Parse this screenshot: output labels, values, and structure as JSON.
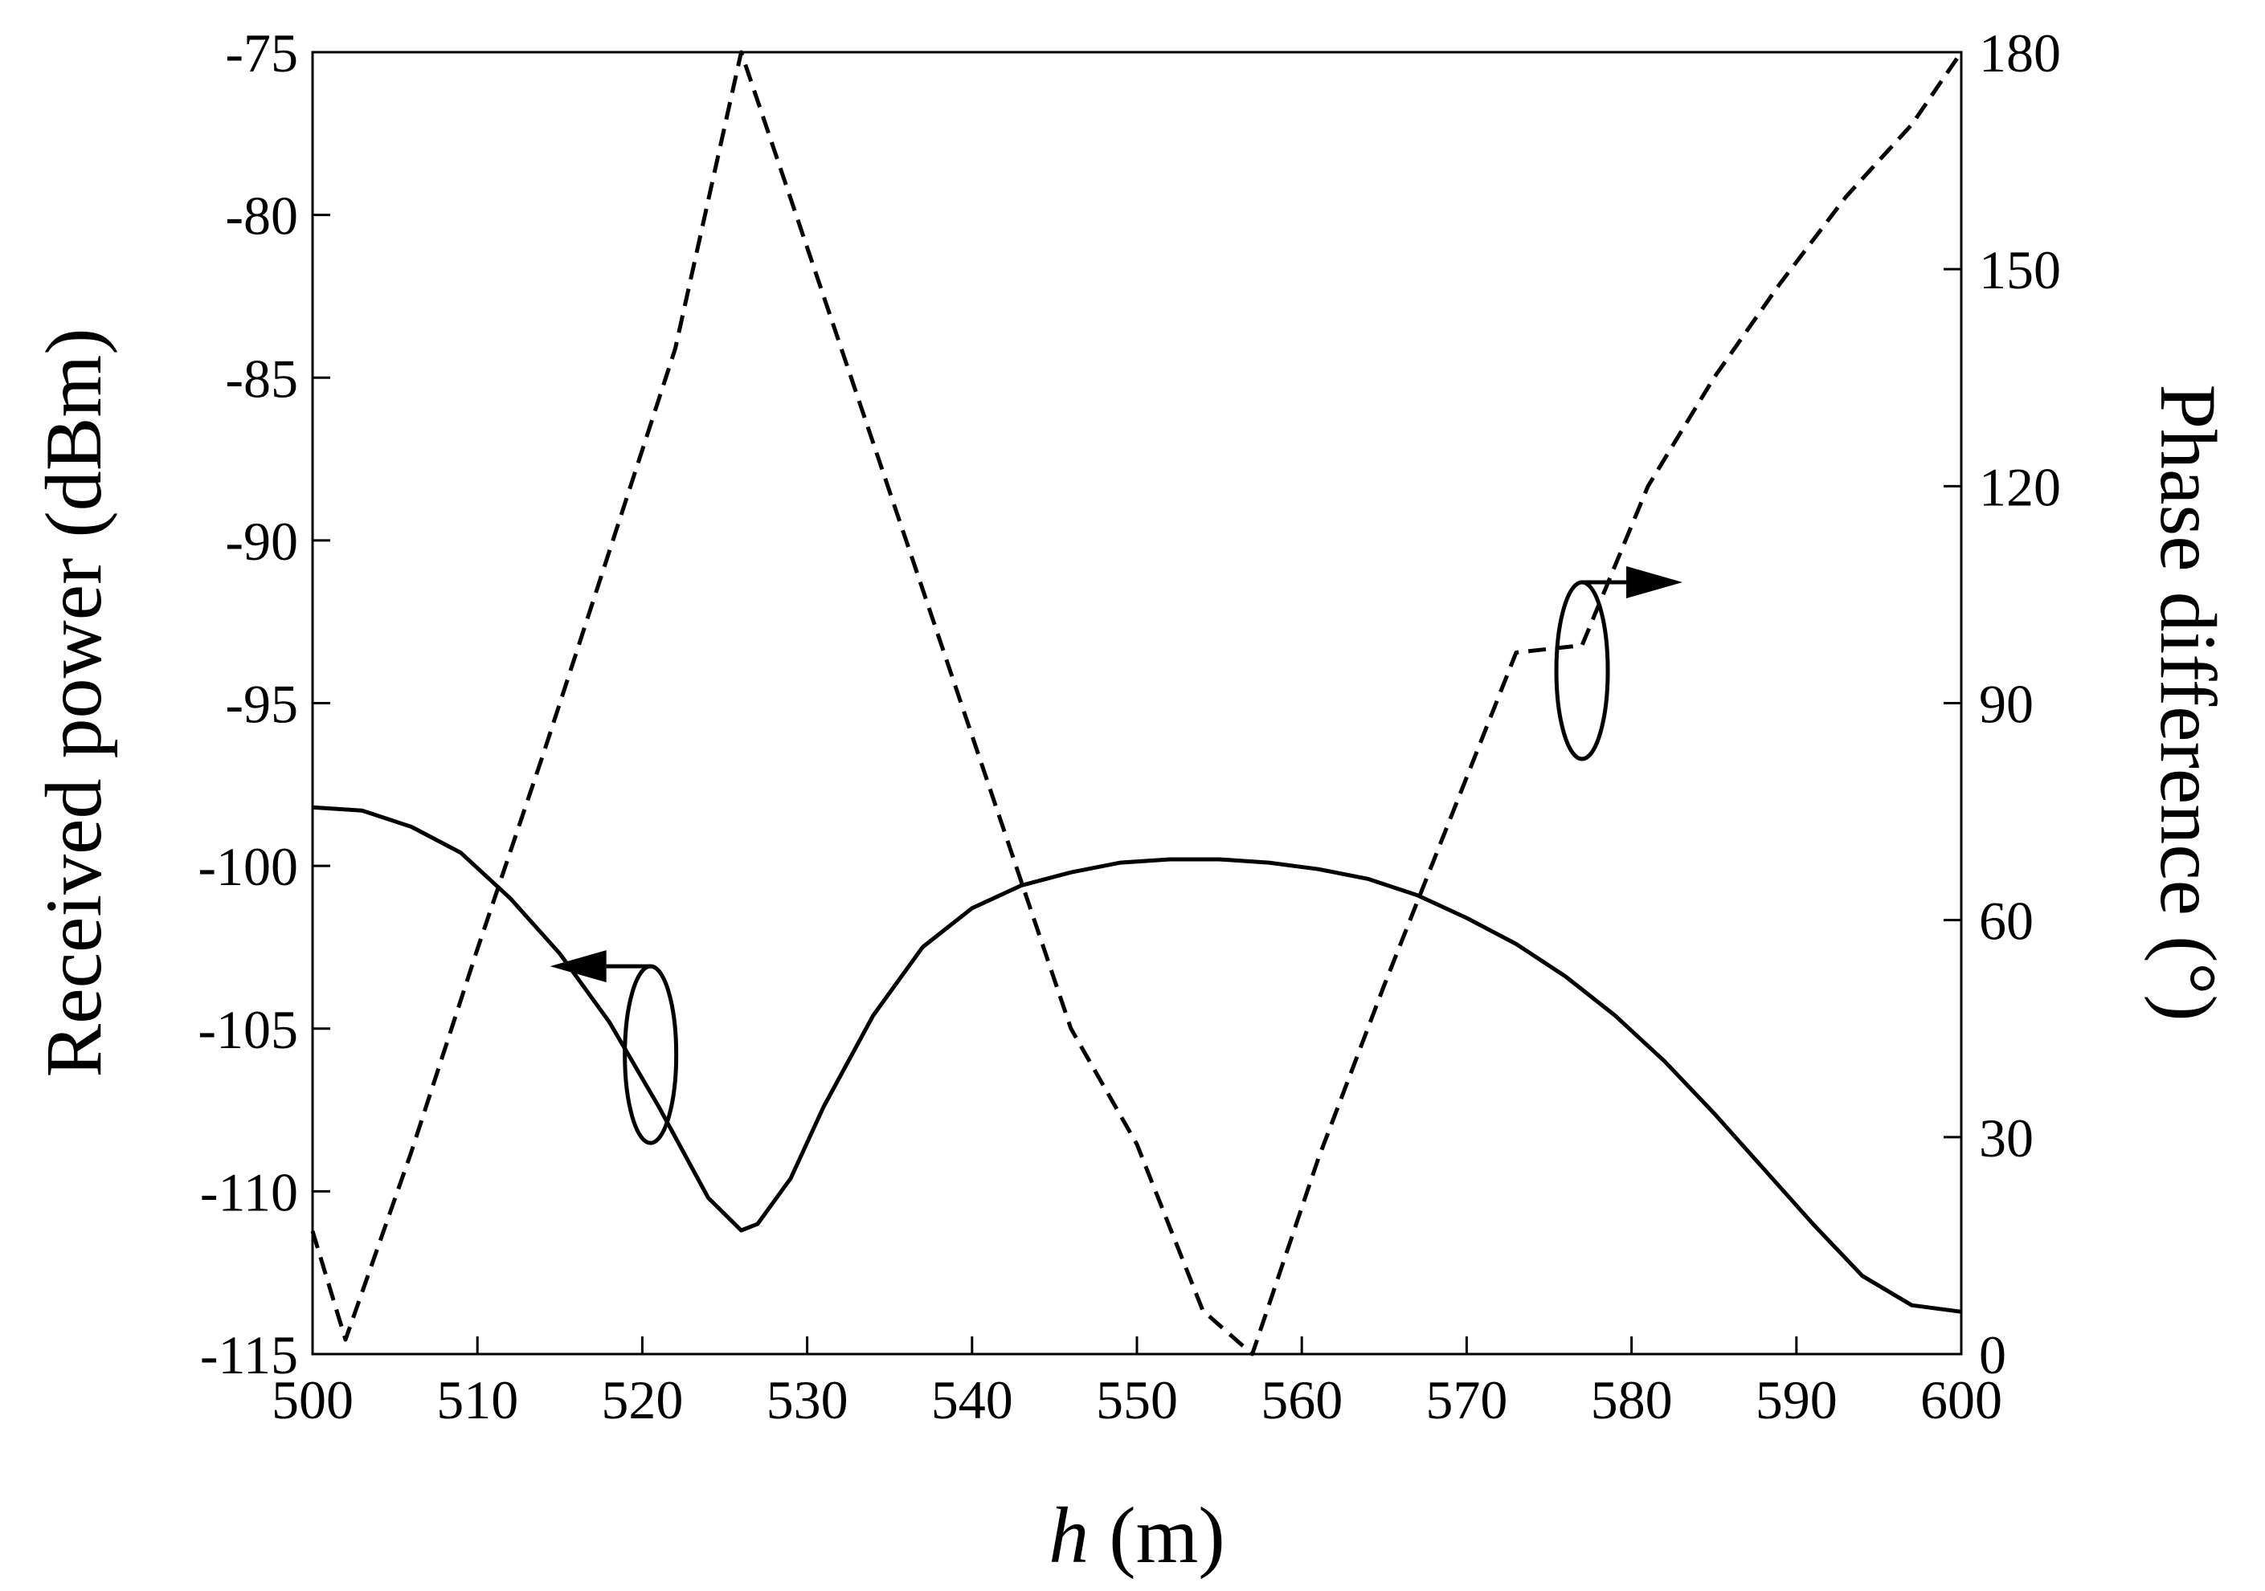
{
  "chart_data": {
    "type": "line",
    "xlabel_var": "h",
    "xlabel_unit": " (m)",
    "ylabel": "Received power (dBm)",
    "y2label": "Phase difference (°)",
    "xlim": [
      500,
      600
    ],
    "ylim": [
      -115,
      -75
    ],
    "y2lim": [
      0,
      180
    ],
    "xticks": [
      500,
      510,
      520,
      530,
      540,
      550,
      560,
      570,
      580,
      590,
      600
    ],
    "yticks": [
      -75,
      -80,
      -85,
      -90,
      -95,
      -100,
      -105,
      -110,
      -115
    ],
    "y2ticks": [
      180,
      150,
      120,
      90,
      60,
      30,
      0
    ],
    "grid": false,
    "series": [
      {
        "axis": "left",
        "style": "solid",
        "color": "#000000",
        "x": [
          500,
          503,
          506,
          509,
          512,
          515,
          518,
          521,
          524,
          526,
          527,
          529,
          531,
          534,
          537,
          540,
          543,
          546,
          549,
          552,
          555,
          558,
          561,
          564,
          567,
          570,
          573,
          576,
          579,
          582,
          585,
          588,
          591,
          594,
          597,
          600
        ],
        "y": [
          -98.2,
          -98.3,
          -98.8,
          -99.6,
          -101.0,
          -102.7,
          -104.8,
          -107.4,
          -110.2,
          -111.2,
          -111.0,
          -109.6,
          -107.4,
          -104.6,
          -102.5,
          -101.3,
          -100.6,
          -100.2,
          -99.9,
          -99.8,
          -99.8,
          -99.9,
          -100.1,
          -100.4,
          -100.9,
          -101.6,
          -102.4,
          -103.4,
          -104.6,
          -106.0,
          -107.6,
          -109.3,
          -111.0,
          -112.6,
          -113.5,
          -113.7
        ]
      },
      {
        "axis": "right",
        "style": "dashed",
        "color": "#000000",
        "x": [
          500,
          502,
          506,
          510,
          514,
          518,
          522,
          526,
          530,
          534,
          538,
          542,
          546,
          550,
          554,
          557,
          561,
          565,
          569,
          573,
          577,
          581,
          585,
          589,
          593,
          597,
          600
        ],
        "y": [
          17,
          2,
          28,
          56,
          83,
          111,
          139,
          180,
          153,
          126,
          99,
          72,
          45,
          29,
          6,
          0,
          27,
          51,
          74,
          97,
          98,
          120,
          135,
          148,
          160,
          170,
          180
        ]
      }
    ],
    "annotations": [
      {
        "target": "left",
        "ellipse_at": [
          520.5,
          -105.8
        ],
        "arrow": "left"
      },
      {
        "target": "right",
        "ellipse_at": [
          577,
          -94.0
        ],
        "arrow": "right"
      }
    ]
  }
}
